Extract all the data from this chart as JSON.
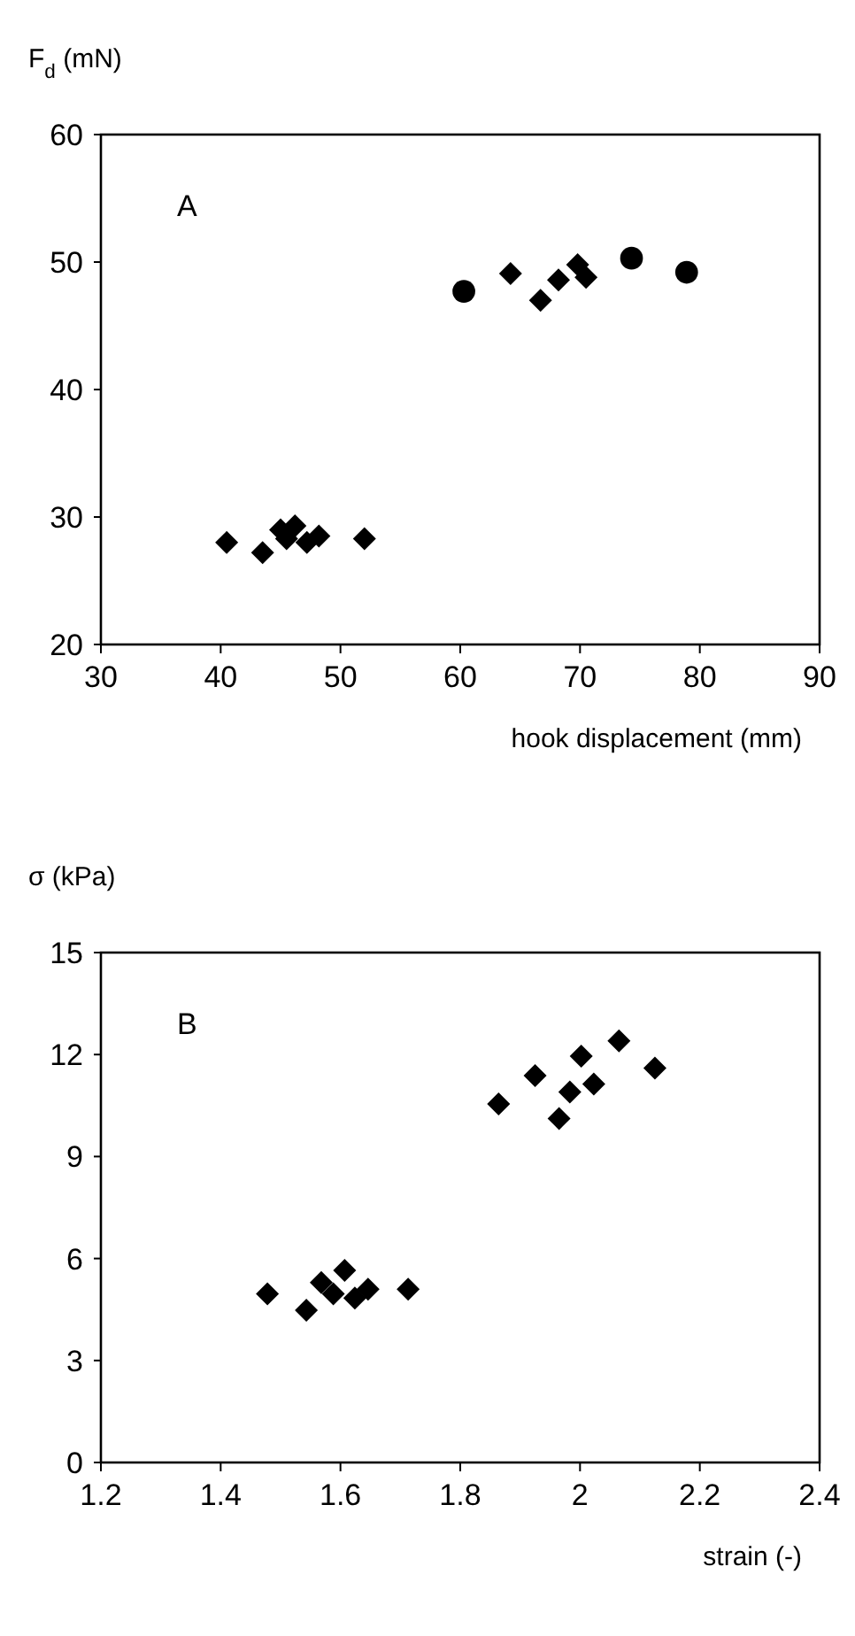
{
  "chart_data": [
    {
      "type": "scatter",
      "ylabel": "F$_{d}$ (mN)",
      "xlabel": "hook displacement (mm)",
      "annotations": [
        "A"
      ],
      "xlim": [
        30,
        90
      ],
      "xticks": [
        30,
        40,
        50,
        60,
        70,
        80,
        90
      ],
      "ylim": [
        20,
        60
      ],
      "yticks": [
        20,
        30,
        40,
        50,
        60
      ],
      "grid": false,
      "series": [
        {
          "color": "#000000",
          "marker": "diamond",
          "x": [
            40.5,
            43.5,
            45,
            45.5,
            46.2,
            47.2,
            48.2,
            52,
            64.2,
            66.7,
            68.2,
            69.8,
            70.5
          ],
          "values": [
            28,
            27.2,
            29,
            28.3,
            29.3,
            28,
            28.5,
            28.3,
            49.1,
            47,
            48.6,
            49.8,
            48.8
          ]
        },
        {
          "color": "#000000",
          "marker": "circle",
          "x": [
            60.3,
            74.3,
            78.9
          ],
          "values": [
            47.7,
            50.3,
            49.2
          ]
        }
      ]
    },
    {
      "type": "scatter",
      "ylabel": "σ (kPa)",
      "xlabel": "strain (-)",
      "annotations": [
        "B"
      ],
      "xlim": [
        1.2,
        2.4
      ],
      "xticks": [
        1.2,
        1.4,
        1.6,
        1.8,
        2,
        2.2,
        2.4
      ],
      "ylim": [
        0,
        15
      ],
      "yticks": [
        0,
        3,
        6,
        9,
        12,
        15
      ],
      "grid": false,
      "series": [
        {
          "color": "#000000",
          "marker": "diamond",
          "x": [
            1.478,
            1.543,
            1.568,
            1.588,
            1.607,
            1.624,
            1.646,
            1.713,
            1.864,
            1.925,
            1.965,
            1.983,
            2.002,
            2.023,
            2.065,
            2.125
          ],
          "values": [
            4.96,
            4.48,
            5.29,
            4.96,
            5.65,
            4.84,
            5.1,
            5.1,
            10.55,
            11.38,
            10.12,
            10.9,
            11.95,
            11.13,
            12.4,
            11.6
          ]
        }
      ]
    }
  ]
}
